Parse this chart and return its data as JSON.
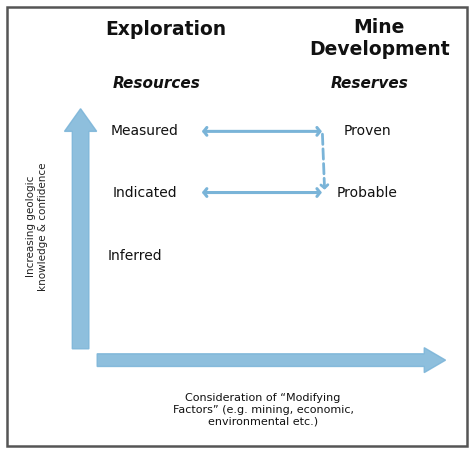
{
  "background_color": "#ffffff",
  "border_color": "#555555",
  "arrow_color": "#7ab4d8",
  "title_exploration": "Exploration",
  "title_mine_dev": "Mine\nDevelopment",
  "label_resources": "Resources",
  "label_reserves": "Reserves",
  "label_measured": "Measured",
  "label_indicated": "Indicated",
  "label_inferred": "Inferred",
  "label_proven": "Proven",
  "label_probable": "Probable",
  "vertical_arrow_label": "Increasing geologic\nknowledge & confidence",
  "horizontal_arrow_label": "Consideration of “Modifying\nFactors” (e.g. mining, economic,\nenvironmental etc.)",
  "figsize": [
    4.74,
    4.53
  ],
  "dpi": 100,
  "xlim": [
    0,
    10
  ],
  "ylim": [
    0,
    10
  ]
}
